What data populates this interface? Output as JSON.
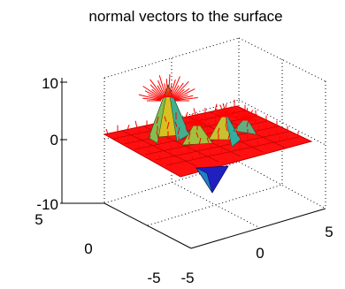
{
  "chart_data": {
    "type": "surface3d",
    "title": "normal vectors to the surface",
    "zlim": [
      -10,
      10
    ],
    "xlim": [
      -5,
      5
    ],
    "ylim": [
      -5,
      5
    ],
    "z_ticks": [
      "10",
      "0",
      "-10"
    ],
    "y_ticks": [
      "5",
      "0",
      "-5"
    ],
    "x_ticks": [
      "-5",
      "0",
      "5"
    ],
    "grid": true,
    "series": [
      {
        "kind": "surface",
        "function": "peaks",
        "peaks": [
          {
            "x": 0,
            "y": 1.6,
            "z": 8
          },
          {
            "x": 1.3,
            "y": 0,
            "z": 3.8
          },
          {
            "x": -1.3,
            "y": 0.2,
            "z": 3.2
          },
          {
            "x": 0,
            "y": -1.6,
            "z": -6.5
          }
        ]
      },
      {
        "kind": "normal-vectors",
        "color": "#ff0000"
      }
    ],
    "colors": {
      "surface_high": "#d8c020",
      "surface_mid": "#30b0a0",
      "surface_low": "#2020c0",
      "normals": "#ff0000",
      "grid": "#000000"
    }
  }
}
